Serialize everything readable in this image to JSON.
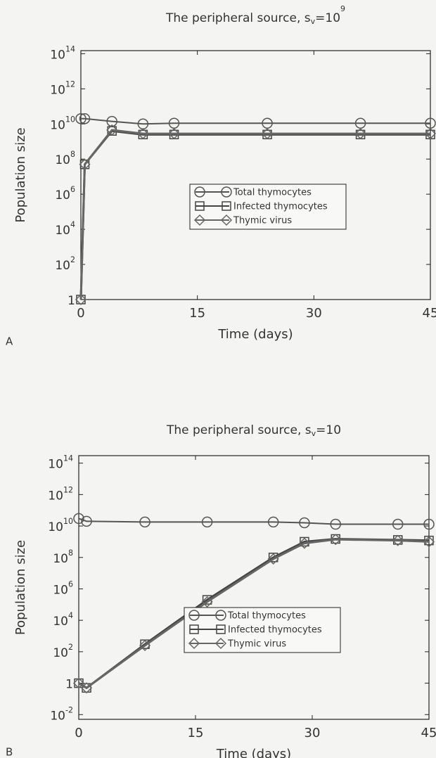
{
  "chart_data": [
    {
      "type": "line",
      "panel": "A",
      "title": [
        {
          "text": "The peripheral source, s"
        },
        {
          "text": "v",
          "shift": "sub"
        },
        {
          "text": "=10"
        },
        {
          "text": "9",
          "shift": "super"
        }
      ],
      "x_label": "Time (days)",
      "y_label": "Population size",
      "yscale": "log",
      "xlim": [
        0,
        45
      ],
      "xticks": [
        0,
        15,
        30,
        45
      ],
      "ylim": [
        1,
        150000000000000
      ],
      "yticks": [
        1,
        {
          "value": 100,
          "label": "10",
          "exponent": "2"
        },
        {
          "value": 10000,
          "label": "10",
          "exponent": "4"
        },
        {
          "value": 1000000,
          "label": "10",
          "exponent": "6"
        },
        {
          "value": 100000000,
          "label": "10",
          "exponent": "8"
        },
        {
          "value": 10000000000,
          "label": "10",
          "exponent": "10"
        },
        {
          "value": 1000000000000,
          "label": "10",
          "exponent": "12"
        },
        {
          "value": 100000000000000,
          "label": "10",
          "exponent": "14"
        }
      ],
      "x": [
        0,
        0.5,
        4,
        8,
        12,
        24,
        36,
        45
      ],
      "series": [
        {
          "name": "Total thymocytes",
          "color": "#555555",
          "marker": "circle",
          "values": [
            20000000000,
            20000000000,
            14000000000,
            10000000000,
            11000000000,
            11000000000,
            11000000000,
            11000000000
          ]
        },
        {
          "name": "Infected thymocytes",
          "color": "#444444",
          "marker": "square",
          "values": [
            1,
            50000000,
            4000000000,
            2500000000,
            2500000000,
            2500000000,
            2500000000,
            2500000000
          ]
        },
        {
          "name": "Thymic virus",
          "color": "#666666",
          "marker": "diamond",
          "values": [
            1,
            50000000,
            4500000000,
            2800000000,
            2800000000,
            2800000000,
            2800000000,
            2800000000
          ]
        }
      ]
    },
    {
      "type": "line",
      "panel": "B",
      "title": [
        {
          "text": "The peripheral source, s"
        },
        {
          "text": "v",
          "shift": "sub"
        },
        {
          "text": "=10"
        }
      ],
      "x_label": "Time (days)",
      "y_label": "Population size",
      "yscale": "log",
      "xlim": [
        0,
        45
      ],
      "xticks": [
        0,
        15,
        30,
        45
      ],
      "ylim": [
        0.005,
        300000000000000
      ],
      "yticks": [
        {
          "value": 0.01,
          "label": "10",
          "exponent": "-2"
        },
        1,
        {
          "value": 100,
          "label": "10",
          "exponent": "2"
        },
        {
          "value": 10000,
          "label": "10",
          "exponent": "4"
        },
        {
          "value": 1000000,
          "label": "10",
          "exponent": "6"
        },
        {
          "value": 100000000,
          "label": "10",
          "exponent": "8"
        },
        {
          "value": 10000000000,
          "label": "10",
          "exponent": "10"
        },
        {
          "value": 1000000000000,
          "label": "10",
          "exponent": "12"
        },
        {
          "value": 100000000000000,
          "label": "10",
          "exponent": "14"
        }
      ],
      "x": [
        0,
        1,
        8.5,
        16.5,
        25,
        29,
        33,
        41,
        45
      ],
      "series": [
        {
          "name": "Total thymocytes",
          "color": "#555555",
          "marker": "circle",
          "values": [
            30000000000,
            20000000000,
            18000000000,
            18000000000,
            18000000000,
            16000000000,
            13000000000,
            13000000000,
            13000000000
          ]
        },
        {
          "name": "Infected thymocytes",
          "color": "#444444",
          "marker": "square",
          "values": [
            1,
            0.5,
            300,
            200000,
            100000000,
            1000000000,
            1500000000,
            1300000000,
            1200000000
          ]
        },
        {
          "name": "Thymic virus",
          "color": "#666666",
          "marker": "diamond",
          "values": [
            1,
            0.5,
            250,
            150000,
            80000000,
            800000000,
            1400000000,
            1200000000,
            1000000000
          ]
        }
      ]
    }
  ]
}
